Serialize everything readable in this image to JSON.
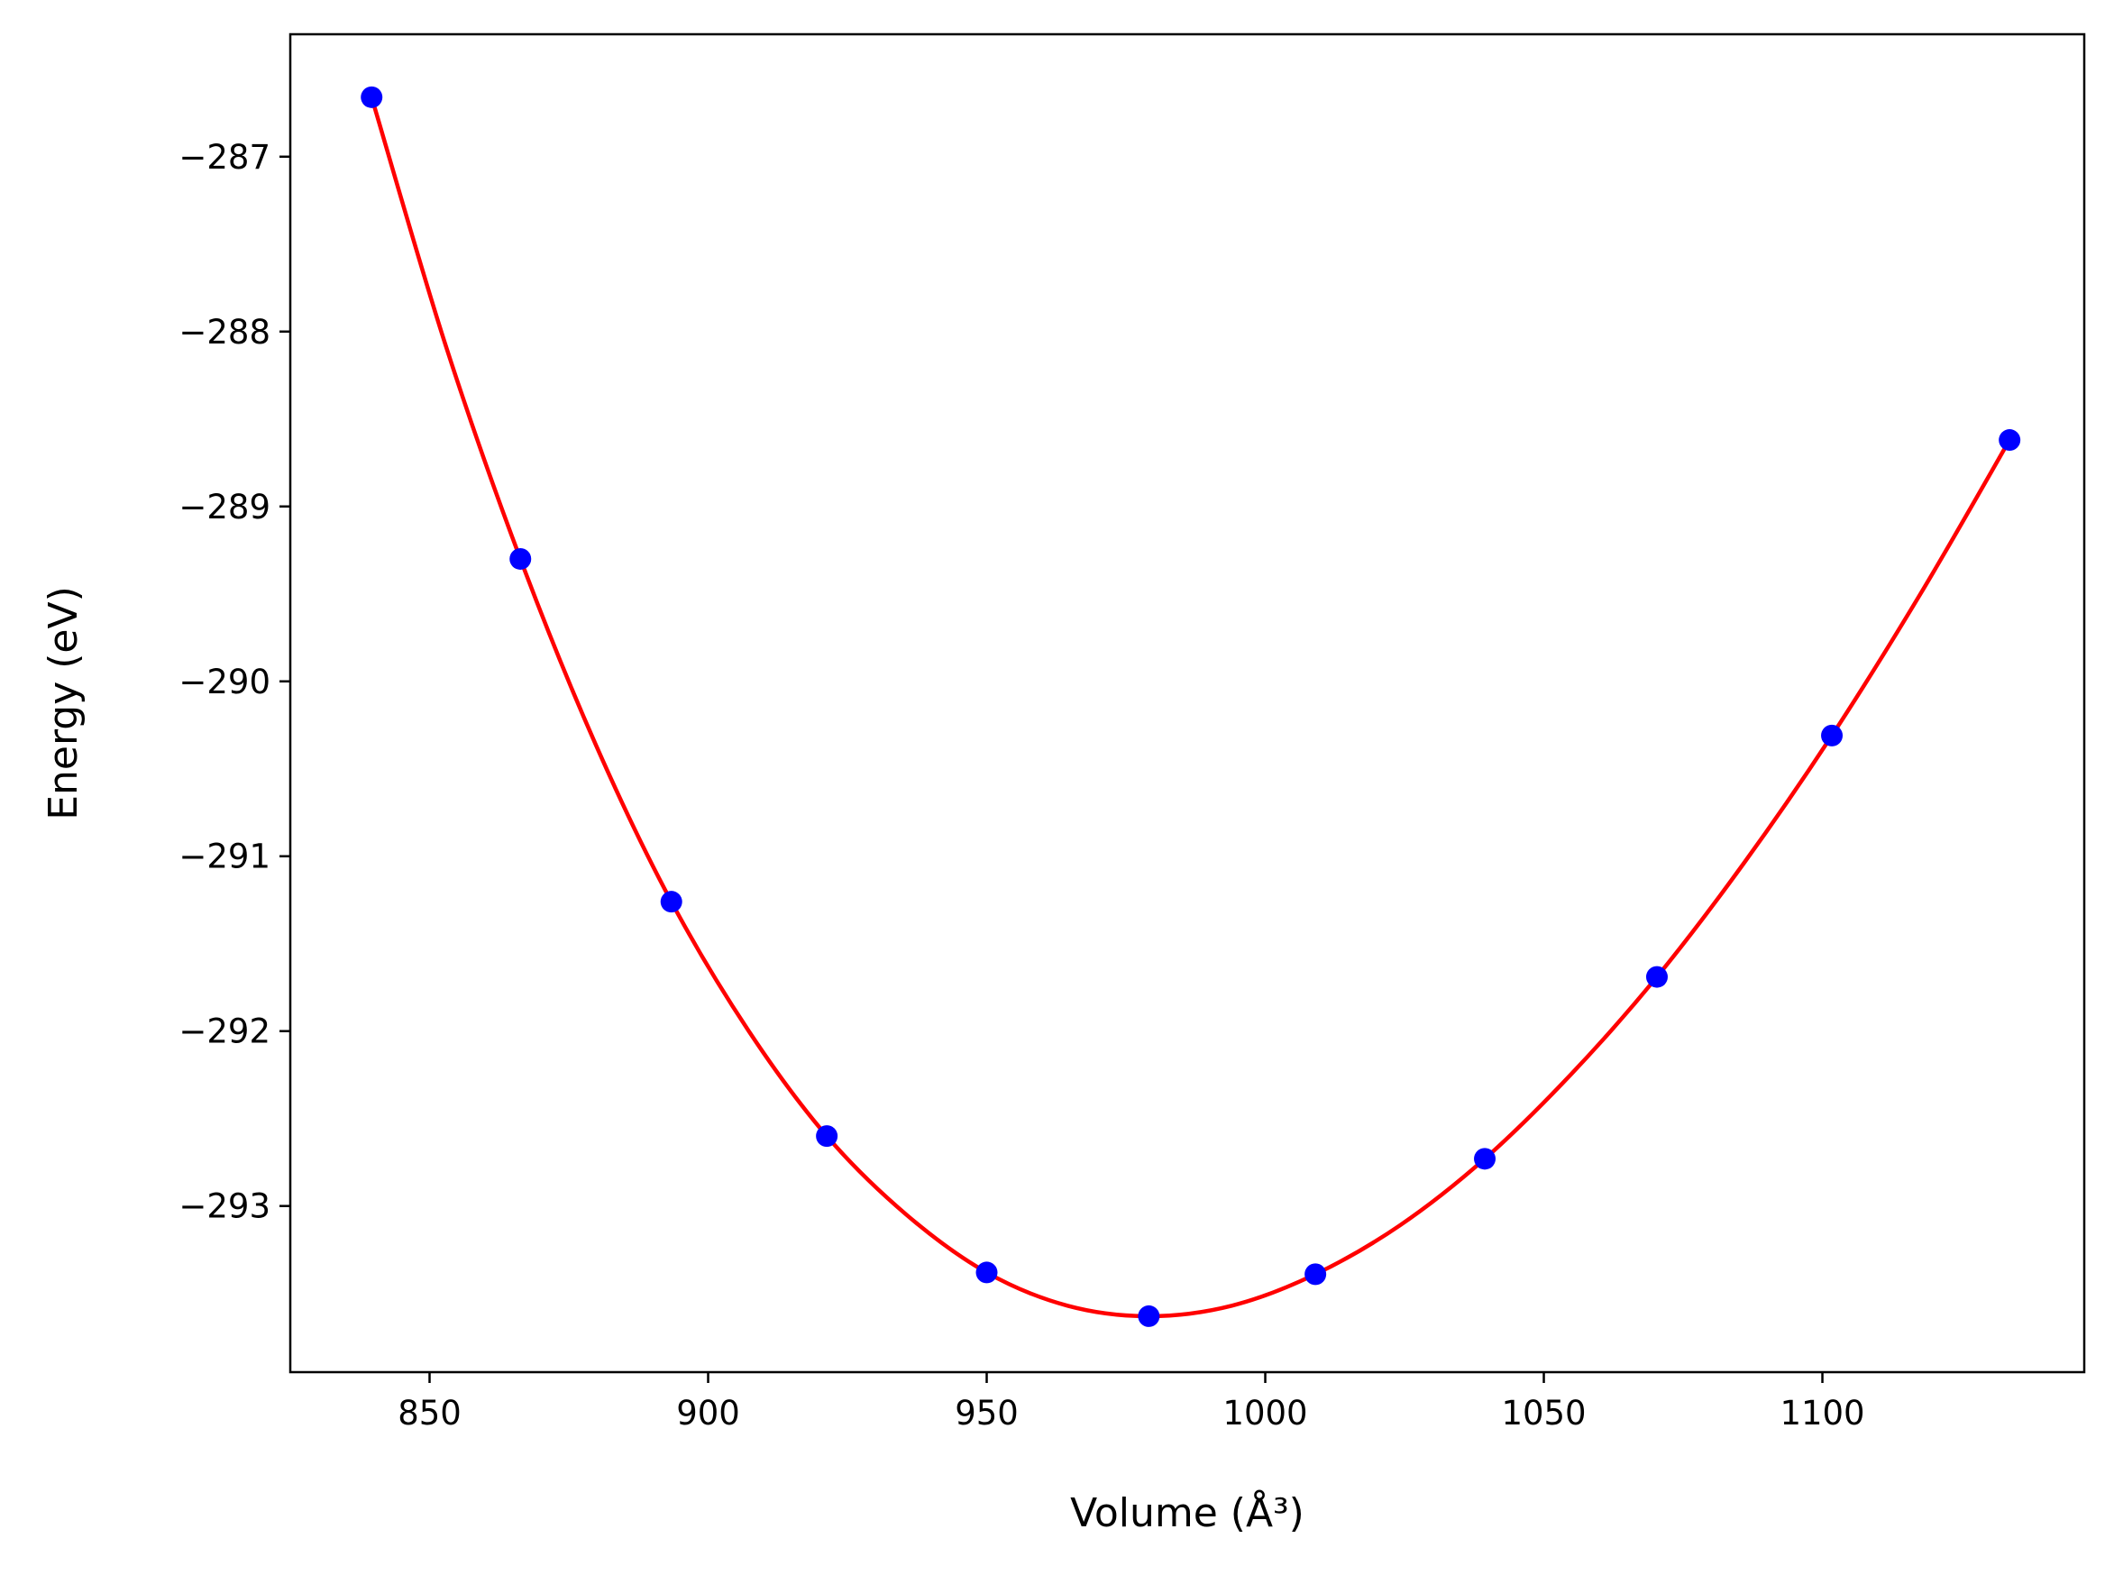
{
  "chart_data": {
    "type": "scatter",
    "title": "",
    "xlabel": "Volume (Å³)",
    "ylabel": "Energy (eV)",
    "xlim": [
      825,
      1147
    ],
    "ylim": [
      -293.95,
      -286.3
    ],
    "x_ticks": [
      850,
      900,
      950,
      1000,
      1050,
      1100
    ],
    "y_ticks": [
      -287,
      -288,
      -289,
      -290,
      -291,
      -292,
      -293
    ],
    "x_tick_labels": [
      "850",
      "900",
      "950",
      "1000",
      "1050",
      "1100"
    ],
    "y_tick_labels": [
      "−287",
      "−288",
      "−289",
      "−290",
      "−291",
      "−292",
      "−293"
    ],
    "grid": false,
    "series": [
      {
        "kind": "points",
        "color": "#0000ff",
        "x": [
          839.6,
          866.3,
          893.4,
          921.3,
          950.0,
          979.1,
          1009.0,
          1039.4,
          1070.3,
          1101.7,
          1133.6
        ],
        "y": [
          -286.66,
          -289.3,
          -291.26,
          -292.6,
          -293.38,
          -293.63,
          -293.39,
          -292.73,
          -291.69,
          -290.31,
          -288.62
        ]
      },
      {
        "kind": "fit-curve",
        "color": "#ff0000",
        "x": [
          839.6,
          852.9,
          866.3,
          879.8,
          893.4,
          907.3,
          921.3,
          935.6,
          950.0,
          964.5,
          979.1,
          994.0,
          1009.0,
          1024.2,
          1039.4,
          1054.8,
          1070.3,
          1085.9,
          1101.7,
          1117.6,
          1133.6
        ],
        "y": [
          -286.66,
          -288.08,
          -289.3,
          -290.36,
          -291.26,
          -292.0,
          -292.6,
          -293.05,
          -293.38,
          -293.57,
          -293.63,
          -293.57,
          -293.39,
          -293.11,
          -292.73,
          -292.25,
          -291.69,
          -291.04,
          -290.31,
          -289.5,
          -288.62
        ]
      }
    ]
  }
}
